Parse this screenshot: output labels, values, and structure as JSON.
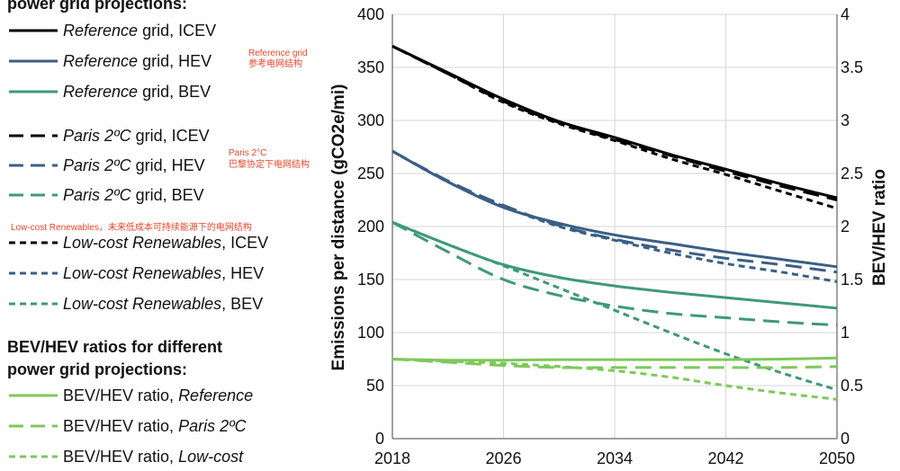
{
  "legend": {
    "heading_grid": "power grid projections:",
    "heading_ratio_line1": "BEV/HEV ratios for different",
    "heading_ratio_line2": "power grid projections:",
    "items": [
      {
        "italic": "Reference",
        "rest": " grid, ICEV",
        "color": "#000000",
        "dash": "solid"
      },
      {
        "italic": "Reference",
        "rest": " grid, HEV",
        "color": "#3a5f85",
        "dash": "solid"
      },
      {
        "italic": "Reference",
        "rest": " grid, BEV",
        "color": "#3e9978",
        "dash": "solid"
      },
      {
        "italic": "Paris 2ºC",
        "rest": " grid, ICEV",
        "color": "#000000",
        "dash": "long"
      },
      {
        "italic": "Paris 2ºC",
        "rest": " grid, HEV",
        "color": "#3a5f85",
        "dash": "long"
      },
      {
        "italic": "Paris 2ºC",
        "rest": " grid, BEV",
        "color": "#3e9978",
        "dash": "long"
      },
      {
        "italic": "Low-cost Renewables",
        "rest": ", ICEV",
        "color": "#000000",
        "dash": "short"
      },
      {
        "italic": "Low-cost Renewables",
        "rest": ", HEV",
        "color": "#3a5f85",
        "dash": "short"
      },
      {
        "italic": "Low-cost Renewables",
        "rest": ", BEV",
        "color": "#3e9978",
        "dash": "short"
      }
    ],
    "ratio_items": [
      {
        "pre": "BEV/HEV ratio, ",
        "italic": "Reference",
        "color": "#7ec85a",
        "dash": "solid"
      },
      {
        "pre": "BEV/HEV ratio, ",
        "italic": "Paris 2ºC",
        "color": "#7ec85a",
        "dash": "long"
      },
      {
        "pre": "BEV/HEV ratio, ",
        "italic": "Low-cost",
        "color": "#7ec85a",
        "dash": "short"
      }
    ],
    "notes": {
      "reference_en": "Reference grid",
      "reference_cn": "参考电网结构",
      "paris_en": "Paris 2°C",
      "paris_cn": "巴黎协定下电网结构",
      "lowcost": "Low-cost Renewables，未来低成本可持续能源下的电网结构"
    }
  },
  "chart_data": {
    "type": "line",
    "title": "",
    "xlabel": "",
    "ylabel": "Emissions per distance (gCO2e/mi)",
    "y2label": "BEV/HEV ratio",
    "xlim": [
      2018,
      2050
    ],
    "ylim": [
      0,
      400
    ],
    "y2lim": [
      0,
      4
    ],
    "x_ticks": [
      "2018",
      "2026",
      "2034",
      "2042",
      "2050"
    ],
    "y_ticks": [
      "0",
      "50",
      "100",
      "150",
      "200",
      "250",
      "300",
      "350",
      "400"
    ],
    "y2_ticks": [
      "0",
      "0.5",
      "1",
      "1.5",
      "2",
      "2.5",
      "3",
      "3.5",
      "4"
    ],
    "x": [
      2018,
      2022,
      2026,
      2030,
      2034,
      2038,
      2042,
      2046,
      2050
    ],
    "series": [
      {
        "name": "Reference grid, ICEV",
        "axis": "left",
        "color": "#000000",
        "dash": "solid",
        "values": [
          370,
          345,
          320,
          299,
          284,
          268,
          254,
          240,
          227
        ]
      },
      {
        "name": "Paris 2ºC grid, ICEV",
        "axis": "left",
        "color": "#000000",
        "dash": "long",
        "values": [
          370,
          344,
          318,
          298,
          282,
          267,
          252,
          238,
          225
        ]
      },
      {
        "name": "Low-cost Renewables, ICEV",
        "axis": "left",
        "color": "#000000",
        "dash": "short",
        "values": [
          370,
          344,
          317,
          297,
          281,
          264,
          249,
          233,
          217
        ]
      },
      {
        "name": "Reference grid, HEV",
        "axis": "left",
        "color": "#3a5f85",
        "dash": "solid",
        "values": [
          271,
          242,
          218,
          203,
          192,
          184,
          176,
          169,
          162
        ]
      },
      {
        "name": "Paris 2ºC grid, HEV",
        "axis": "left",
        "color": "#3a5f85",
        "dash": "long",
        "values": [
          271,
          243,
          220,
          201,
          188,
          178,
          170,
          164,
          157
        ]
      },
      {
        "name": "Low-cost Renewables, HEV",
        "axis": "left",
        "color": "#3a5f85",
        "dash": "short",
        "values": [
          271,
          242,
          219,
          200,
          187,
          175,
          165,
          157,
          148
        ]
      },
      {
        "name": "Reference grid, BEV",
        "axis": "left",
        "color": "#3e9978",
        "dash": "solid",
        "values": [
          204,
          183,
          164,
          152,
          144,
          138,
          133,
          128,
          123
        ]
      },
      {
        "name": "Paris 2ºC grid, BEV",
        "axis": "left",
        "color": "#3e9978",
        "dash": "long",
        "values": [
          204,
          176,
          150,
          135,
          125,
          118,
          114,
          110,
          107
        ]
      },
      {
        "name": "Low-cost Renewables, BEV",
        "axis": "left",
        "color": "#3e9978",
        "dash": "short",
        "values": [
          204,
          183,
          163,
          142,
          121,
          100,
          80,
          62,
          46
        ]
      },
      {
        "name": "BEV/HEV ratio, Reference",
        "axis": "right",
        "color": "#7ec85a",
        "dash": "solid",
        "values": [
          0.75,
          0.74,
          0.74,
          0.745,
          0.745,
          0.745,
          0.745,
          0.75,
          0.76
        ]
      },
      {
        "name": "BEV/HEV ratio, Paris 2ºC",
        "axis": "right",
        "color": "#7ec85a",
        "dash": "long",
        "values": [
          0.75,
          0.72,
          0.69,
          0.67,
          0.67,
          0.67,
          0.67,
          0.67,
          0.68
        ]
      },
      {
        "name": "BEV/HEV ratio, Low-cost",
        "axis": "right",
        "color": "#7ec85a",
        "dash": "short",
        "values": [
          0.75,
          0.73,
          0.71,
          0.68,
          0.64,
          0.58,
          0.5,
          0.43,
          0.37
        ]
      }
    ]
  }
}
